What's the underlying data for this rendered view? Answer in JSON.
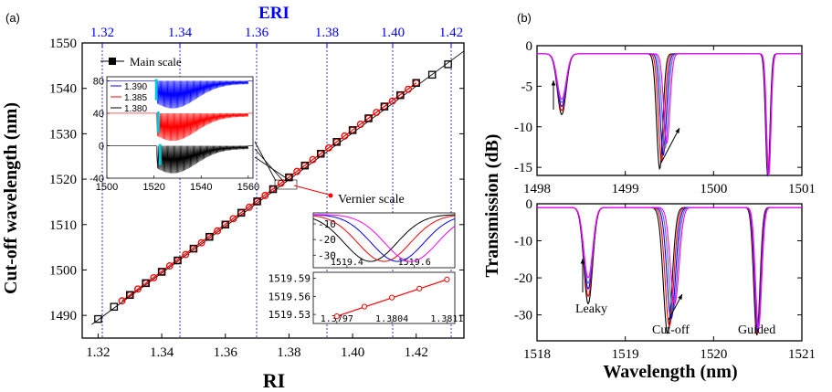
{
  "panels": {
    "a": {
      "label": "(a)",
      "xlabel": "RI",
      "ylabel": "Cut-off wavelength (nm)",
      "top_axis_label": "ERI",
      "top_ticks": [
        "1.32",
        "1.34",
        "1.36",
        "1.38",
        "1.40",
        "1.42"
      ],
      "legend_label": "Main scale",
      "vernier_label": "Vernier scale"
    },
    "b": {
      "label": "(b)",
      "xlabel": "Wavelength (nm)",
      "ylabel": "Transmission (dB)",
      "annotations": {
        "leaky": "Leaky",
        "cutoff": "Cut-off",
        "guided": "Guided"
      }
    }
  },
  "colors": {
    "main": "#000000",
    "vernier": "#ff0000",
    "eri": "#0000ff",
    "inset_1390": "#0000ff",
    "inset_1385": "#ff0000",
    "inset_1380": "#000000",
    "cyan": "#00c8d8",
    "magenta": "#ff00ff"
  },
  "chart_data": [
    {
      "id": "main",
      "type": "scatter",
      "xlabel": "RI",
      "ylabel": "Cut-off wavelength (nm)",
      "xlim": [
        1.315,
        1.435
      ],
      "ylim": [
        1485,
        1550
      ],
      "xticks": [
        "1.32",
        "1.34",
        "1.36",
        "1.38",
        "1.40",
        "1.42"
      ],
      "yticks": [
        "1490",
        "1500",
        "1510",
        "1520",
        "1530",
        "1540",
        "1550"
      ],
      "series": [
        {
          "name": "Main scale",
          "marker": "square",
          "x": [
            1.32,
            1.325,
            1.33,
            1.335,
            1.34,
            1.345,
            1.35,
            1.355,
            1.36,
            1.365,
            1.37,
            1.375,
            1.38,
            1.385,
            1.39,
            1.395,
            1.4,
            1.405,
            1.41,
            1.415,
            1.42,
            1.425,
            1.43
          ],
          "y": [
            1489.2,
            1491.9,
            1494.5,
            1497.1,
            1499.6,
            1502.1,
            1504.7,
            1507.3,
            1510.0,
            1512.6,
            1515.1,
            1517.8,
            1520.4,
            1523.0,
            1525.6,
            1528.2,
            1530.8,
            1533.4,
            1536.0,
            1538.5,
            1541.2,
            1543.0,
            1545.3
          ]
        },
        {
          "marker": "circle",
          "x": [
            1.3275,
            1.33,
            1.3325,
            1.335,
            1.3375,
            1.34,
            1.3425,
            1.345,
            1.3475,
            1.35,
            1.3525,
            1.355,
            1.3575,
            1.36,
            1.3625,
            1.365,
            1.3675,
            1.37,
            1.3725,
            1.375,
            1.3775,
            1.38,
            1.3825,
            1.385,
            1.3875,
            1.39,
            1.3925,
            1.395,
            1.3975,
            1.4,
            1.4025,
            1.405,
            1.4075,
            1.41,
            1.4125,
            1.415,
            1.4175,
            1.42
          ],
          "y": [
            1493.2,
            1494.5,
            1495.8,
            1497.1,
            1498.3,
            1499.6,
            1500.9,
            1502.1,
            1503.4,
            1504.7,
            1506.0,
            1507.3,
            1508.6,
            1510.0,
            1511.3,
            1512.6,
            1513.8,
            1515.1,
            1516.4,
            1517.8,
            1519.1,
            1520.4,
            1521.7,
            1523.0,
            1524.3,
            1525.6,
            1526.9,
            1528.2,
            1529.5,
            1530.8,
            1532.1,
            1533.4,
            1534.7,
            1536.0,
            1537.2,
            1538.5,
            1539.8,
            1541.2
          ]
        }
      ],
      "top_axis": {
        "label": "ERI",
        "ticks": [
          "1.32",
          "1.34",
          "1.36",
          "1.38",
          "1.40",
          "1.42"
        ]
      }
    },
    {
      "id": "inset-spectra",
      "type": "line",
      "xlim": [
        1500,
        1562
      ],
      "ylim": [
        -40,
        85
      ],
      "xticks": [
        "1500",
        "1520",
        "1540",
        "1560"
      ],
      "yticks": [
        "80",
        "40",
        "0",
        "-40"
      ],
      "series": [
        {
          "name": "1.390",
          "offset": 80
        },
        {
          "name": "1.385",
          "offset": 40
        },
        {
          "name": "1.380",
          "offset": 0
        }
      ]
    },
    {
      "id": "inset-vernier-dip",
      "type": "line",
      "xlim": [
        1519.3,
        1519.72
      ],
      "ylim": [
        -38,
        -3
      ],
      "xticks": [
        "1519.4",
        "1519.6"
      ],
      "yticks": [
        "-10",
        "-20",
        "-30"
      ]
    },
    {
      "id": "inset-vernier-fit",
      "type": "scatter",
      "xlim": [
        1.3794,
        1.3812
      ],
      "ylim": [
        1519.515,
        1519.6
      ],
      "xticks": [
        "1.3797",
        "1.3804",
        "1.3811"
      ],
      "yticks": [
        "1519.59",
        "1519.56",
        "1519.53"
      ],
      "x": [
        1.3797,
        1.38005,
        1.3804,
        1.38075,
        1.3811
      ],
      "y": [
        1519.527,
        1519.543,
        1519.558,
        1519.573,
        1519.588
      ]
    },
    {
      "id": "b-top",
      "type": "line",
      "xlabel": "",
      "ylabel": "Transmission (dB)",
      "xlim": [
        1498,
        1501
      ],
      "ylim": [
        -16,
        0
      ],
      "xticks": [
        "1498",
        "1499",
        "1500",
        "1501"
      ],
      "yticks": [
        "0",
        "-5",
        "-10",
        "-15"
      ],
      "dips": [
        {
          "center": 1498.28,
          "depths": [
            -7.5,
            -7.0,
            -6.5,
            -6.0,
            -5.6
          ]
        },
        {
          "center": 1499.43,
          "depths": [
            -14.2,
            -13.3,
            -12.5,
            -11.7,
            -11.0
          ]
        },
        {
          "center": 1500.62,
          "depths": [
            -15.4,
            -15.3,
            -15.2,
            -15.1,
            -15.0
          ]
        }
      ]
    },
    {
      "id": "b-bottom",
      "type": "line",
      "xlabel": "Wavelength (nm)",
      "xlim": [
        1518,
        1521
      ],
      "ylim": [
        -37,
        0
      ],
      "xticks": [
        "1518",
        "1519",
        "1520",
        "1521"
      ],
      "yticks": [
        "0",
        "-10",
        "-20",
        "-30"
      ],
      "dips": [
        {
          "center": 1518.58,
          "depths": [
            -26,
            -24,
            -22,
            -20.5,
            -19
          ]
        },
        {
          "center": 1519.52,
          "depths": [
            -34,
            -32,
            -30,
            -28,
            -26
          ]
        },
        {
          "center": 1520.5,
          "depths": [
            -34.5,
            -34,
            -33.5,
            -33,
            -32.5
          ]
        }
      ]
    }
  ]
}
